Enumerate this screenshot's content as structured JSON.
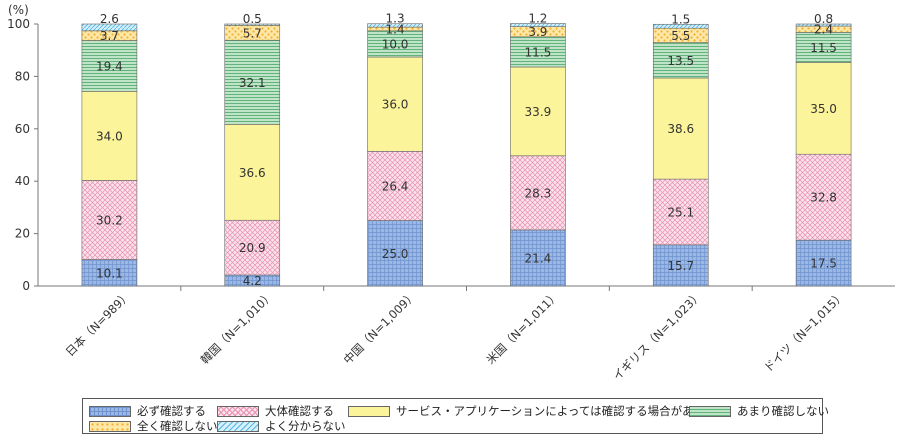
{
  "chart_data": {
    "type": "bar",
    "stacked": true,
    "unit": "(%)",
    "ylim": [
      0,
      100
    ],
    "yticks": [
      "0",
      "20",
      "40",
      "60",
      "80",
      "100"
    ],
    "categories": [
      "日本（N=989）",
      "韓国（N=1,010）",
      "中国（N=1,009）",
      "米国（N=1,011）",
      "イギリス（N=1,023）",
      "ドイツ（N=1,015）"
    ],
    "series": [
      {
        "name": "必ず確認する",
        "color": "#9bb7e4",
        "pattern": "grid",
        "values": [
          10.1,
          4.2,
          25.0,
          21.4,
          15.7,
          17.5
        ],
        "labels": [
          "10.1",
          "4.2",
          "25.0",
          "21.4",
          "15.7",
          "17.5"
        ]
      },
      {
        "name": "大体確認する",
        "color": "#f7c9d8",
        "pattern": "cross",
        "values": [
          30.2,
          20.9,
          26.4,
          28.3,
          25.1,
          32.8
        ],
        "labels": [
          "30.2",
          "20.9",
          "26.4",
          "28.3",
          "25.1",
          "32.8"
        ]
      },
      {
        "name": "サービス・アプリケーションによっては確認する場合がある",
        "color": "#fbf49a",
        "pattern": "solid",
        "values": [
          34.0,
          36.6,
          36.0,
          33.9,
          38.6,
          35.0
        ],
        "labels": [
          "34.0",
          "36.6",
          "36.0",
          "33.9",
          "38.6",
          "35.0"
        ]
      },
      {
        "name": "あまり確認しない",
        "color": "#a8d9b4",
        "pattern": "hlines",
        "values": [
          19.4,
          32.1,
          10.0,
          11.5,
          13.5,
          11.5
        ],
        "labels": [
          "19.4",
          "32.1",
          "10.0",
          "11.5",
          "13.5",
          "11.5"
        ]
      },
      {
        "name": "全く確認しない",
        "color": "#fcd77a",
        "pattern": "dots",
        "values": [
          3.7,
          5.7,
          1.4,
          3.9,
          5.5,
          2.4
        ],
        "labels": [
          "3.7",
          "5.7",
          "1.4",
          "3.9",
          "5.5",
          "2.4"
        ]
      },
      {
        "name": "よく分からない",
        "color": "#bfe6f7",
        "pattern": "diag",
        "values": [
          2.6,
          0.5,
          1.3,
          1.2,
          1.5,
          0.8
        ],
        "labels": [
          "2.6",
          "0.5",
          "1.3",
          "1.2",
          "1.5",
          "0.8"
        ]
      }
    ],
    "legend_position": "bottom",
    "grid": false
  }
}
